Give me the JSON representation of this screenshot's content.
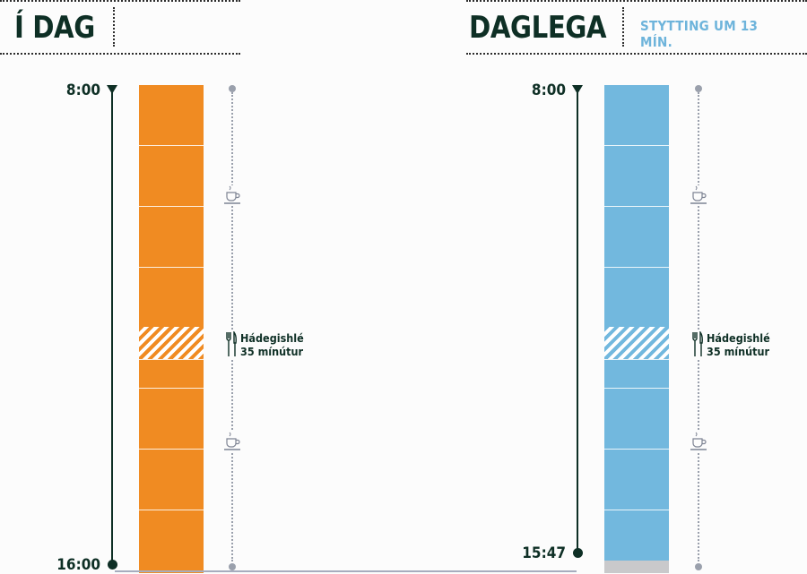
{
  "left_panel": {
    "title": "Í DAG",
    "start_time": "8:00",
    "end_time": "16:00",
    "lunch": {
      "line1": "Hádegishlé",
      "line2": "35 mínútur"
    }
  },
  "right_panel": {
    "title": "DAGLEGA",
    "subtitle": "STYTTING UM 13 MÍN.",
    "start_time": "8:00",
    "end_time": "15:47",
    "lunch": {
      "line1": "Hádegishlé",
      "line2": "35 mínútur"
    }
  },
  "colors": {
    "today_bar": "#f08b22",
    "daily_bar": "#72b8de",
    "reduction": "#c9c9cb",
    "timeline": "#0e2f25",
    "subtitle": "#6eb4db"
  },
  "icons": {
    "coffee_break": "coffee-cup-icon",
    "lunch_break": "fork-knife-icon"
  }
}
